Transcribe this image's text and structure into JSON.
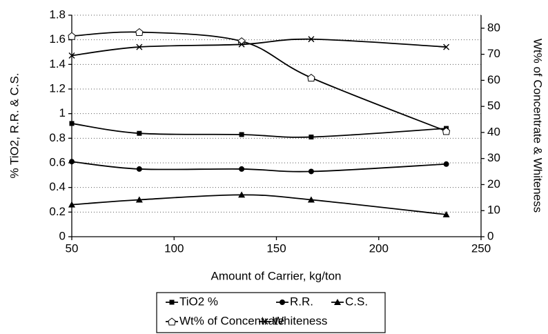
{
  "chart_data": {
    "type": "line",
    "x_label": "Amount of Carrier, kg/ton",
    "y_label": "% TiO2, R.R. & C.S.",
    "y2_label": "Wt% of Concentrate & Whiteness",
    "x": [
      50,
      83,
      133,
      167,
      233
    ],
    "xlim": [
      50,
      250
    ],
    "xticks": [
      50,
      100,
      150,
      200,
      250
    ],
    "ylim": [
      0,
      1.8
    ],
    "yticks": [
      0,
      0.2,
      0.4,
      0.6,
      0.8,
      1,
      1.2,
      1.4,
      1.6,
      1.8
    ],
    "y2lim": [
      0,
      85
    ],
    "y2ticks": [
      0,
      10,
      20,
      30,
      40,
      50,
      60,
      70,
      80
    ],
    "grid": true,
    "series": [
      {
        "name": "TiO2 %",
        "color": "#000000",
        "marker": "square",
        "values": [
          0.92,
          0.84,
          0.83,
          0.81,
          0.88
        ]
      },
      {
        "name": "R.R.",
        "color": "#000000",
        "marker": "circle",
        "values": [
          0.61,
          0.55,
          0.55,
          0.53,
          0.59
        ]
      },
      {
        "name": "C.S.",
        "color": "#000000",
        "marker": "triangle",
        "values": [
          0.26,
          0.3,
          0.34,
          0.3,
          0.18
        ]
      },
      {
        "name": "Wt% of Concentrate",
        "color": "#000000",
        "marker": "open-diamond",
        "axis": "y2",
        "values": [
          77,
          78.5,
          75,
          61,
          40.5
        ]
      },
      {
        "name": "Whiteness",
        "color": "#000000",
        "marker": "x",
        "axis": "y2",
        "values": [
          69.5,
          72.8,
          73.8,
          75.8,
          72.8
        ]
      }
    ]
  }
}
